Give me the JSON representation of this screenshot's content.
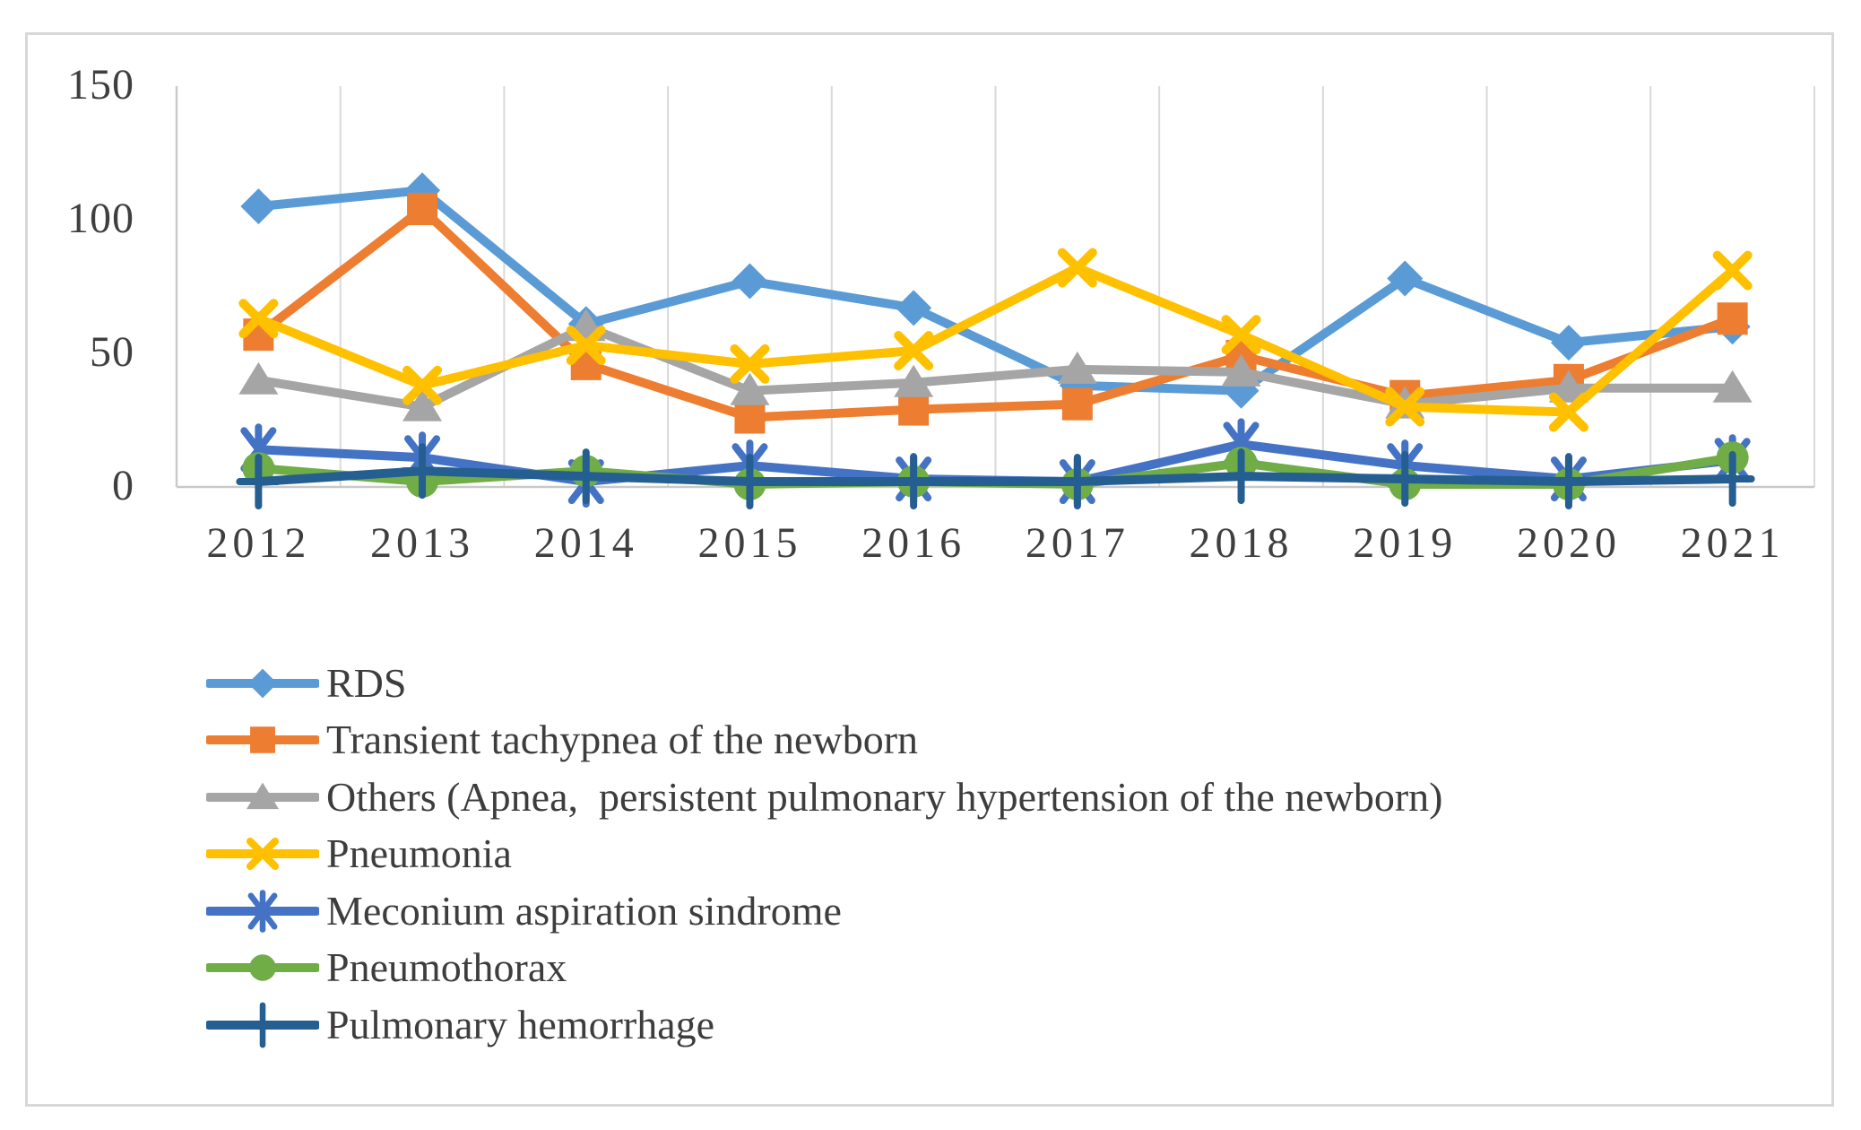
{
  "chart_data": {
    "type": "line",
    "title": "",
    "categories": [
      "2012",
      "2013",
      "2014",
      "2015",
      "2016",
      "2017",
      "2018",
      "2019",
      "2020",
      "2021"
    ],
    "y_ticks": [
      0,
      50,
      100,
      150
    ],
    "y_tick_labels": [
      "0",
      "50",
      "100",
      "150"
    ],
    "ylim": [
      0,
      150
    ],
    "grid": "vertical-gridlines-only",
    "legend_position": "bottom-left",
    "axis_color": "#c9c9c9",
    "gridline_color": "#d9d9d9",
    "series": [
      {
        "name": "RDS",
        "slug": "rds",
        "marker": "diamond",
        "color": "#5B9BD5",
        "values": [
          105,
          111,
          61,
          77,
          67,
          38,
          36,
          78,
          54,
          60
        ]
      },
      {
        "name": "Transient tachypnea of the newborn",
        "slug": "transient-tachypnea",
        "marker": "square",
        "color": "#ED7D31",
        "values": [
          57,
          104,
          46,
          26,
          29,
          31,
          49,
          34,
          40,
          63
        ]
      },
      {
        "name": "Others (Apnea,  persistent pulmonary hypertension of the newborn)",
        "slug": "others-apnea-pphn",
        "marker": "triangle",
        "color": "#A5A5A5",
        "values": [
          40,
          30,
          60,
          36,
          39,
          44,
          43,
          31,
          37,
          37
        ]
      },
      {
        "name": "Pneumonia",
        "slug": "pneumonia",
        "marker": "x",
        "color": "#FFC000",
        "values": [
          63,
          38,
          53,
          46,
          51,
          82,
          57,
          30,
          28,
          81
        ]
      },
      {
        "name": "Meconium aspiration sindrome",
        "slug": "meconium-aspiration",
        "marker": "asterisk",
        "color": "#4472C4",
        "values": [
          14,
          11,
          2,
          8,
          3,
          2,
          16,
          8,
          3,
          10
        ]
      },
      {
        "name": "Pneumothorax",
        "slug": "pneumothorax",
        "marker": "circle",
        "color": "#70AD47",
        "values": [
          7,
          2,
          6,
          1,
          2,
          1,
          9,
          1,
          1,
          11
        ]
      },
      {
        "name": "Pulmonary hemorrhage",
        "slug": "pulmonary-hemorrhage",
        "marker": "plus",
        "color": "#255E91",
        "values": [
          2,
          6,
          4,
          2,
          2,
          2,
          4,
          3,
          2,
          3
        ]
      }
    ]
  }
}
